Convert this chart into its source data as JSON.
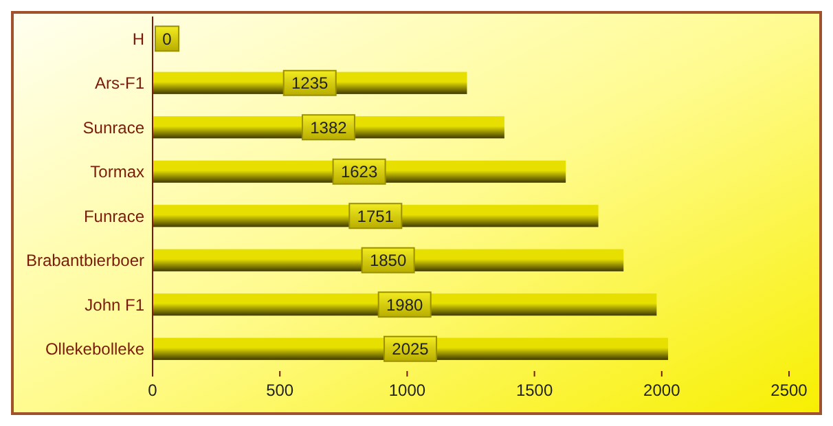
{
  "chart_data": {
    "type": "bar",
    "orientation": "horizontal",
    "categories": [
      "H",
      "Ars-F1",
      "Sunrace",
      "Tormax",
      "Funrace",
      "Brabantbierboer",
      "John F1",
      "Ollekebolleke"
    ],
    "values": [
      0,
      1235,
      1382,
      1623,
      1751,
      1850,
      1980,
      2025
    ],
    "color": "#e6df00",
    "xlim": [
      0,
      2500
    ],
    "xticks": [
      0,
      500,
      1000,
      1500,
      2000,
      2500
    ],
    "grid": false,
    "data_labels": true
  }
}
